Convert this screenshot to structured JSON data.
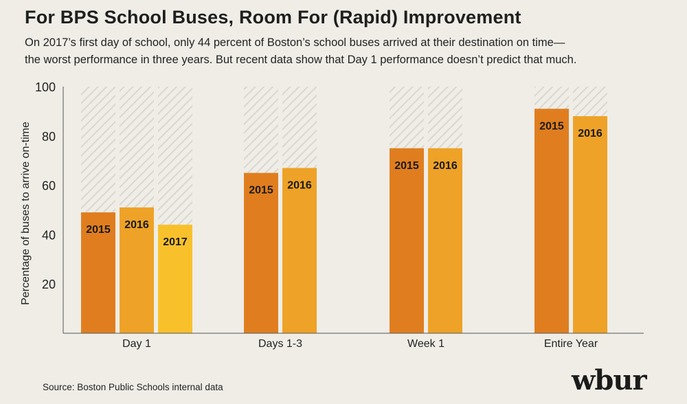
{
  "title": "For BPS School Buses, Room For (Rapid) Improvement",
  "subtitle": {
    "line1": "On 2017’s first day of school, only 44 percent of Boston’s school buses arrived at their destination on time—",
    "line2": "the worst performance in three years. But recent data show that Day 1 performance doesn’t predict that much."
  },
  "source": "Source: Boston Public Schools internal data",
  "logo": "wbur",
  "colors": {
    "2015": "#e07e1f",
    "2016": "#eea227",
    "2017": "#f8c12c",
    "hatch": "#d8d6d0",
    "axis": "#555555",
    "background": "#efede6"
  },
  "chart_data": {
    "type": "bar",
    "ylabel": "Percentage of buses to arrive on-time",
    "xlabel": "",
    "ylim": [
      0,
      100
    ],
    "yticks": [
      20,
      40,
      60,
      80,
      100
    ],
    "grid": false,
    "groups": [
      {
        "category": "Day 1",
        "bars": [
          {
            "label": "2015",
            "value": 49
          },
          {
            "label": "2016",
            "value": 51
          },
          {
            "label": "2017",
            "value": 44
          }
        ]
      },
      {
        "category": "Days 1-3",
        "bars": [
          {
            "label": "2015",
            "value": 65
          },
          {
            "label": "2016",
            "value": 67
          }
        ]
      },
      {
        "category": "Week 1",
        "bars": [
          {
            "label": "2015",
            "value": 75
          },
          {
            "label": "2016",
            "value": 75
          }
        ]
      },
      {
        "category": "Entire Year",
        "bars": [
          {
            "label": "2015",
            "value": 91
          },
          {
            "label": "2016",
            "value": 88
          }
        ]
      }
    ]
  }
}
